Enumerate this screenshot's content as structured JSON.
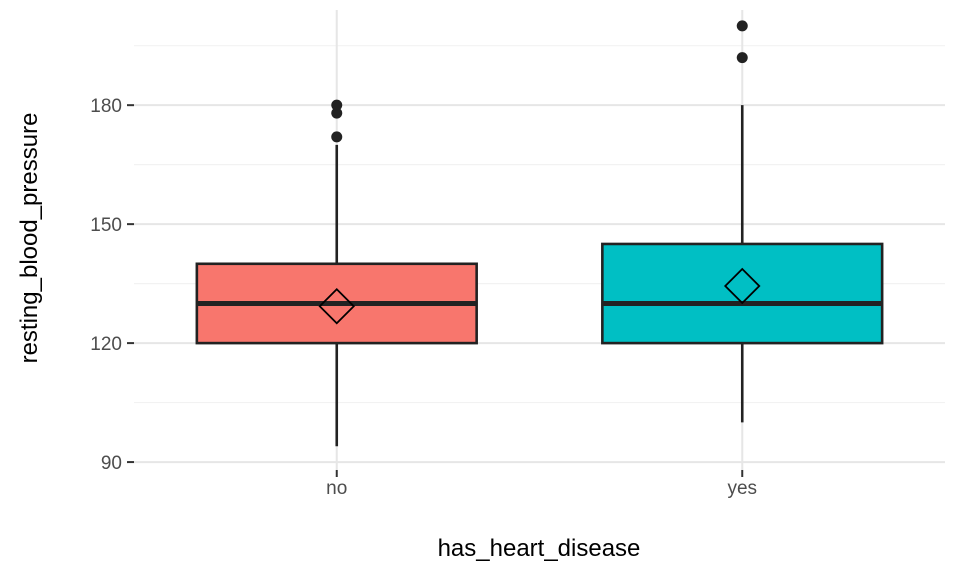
{
  "chart_data": {
    "type": "boxplot",
    "xlabel": "has_heart_disease",
    "ylabel": "resting_blood_pressure",
    "ylim": [
      88,
      204
    ],
    "yticks": [
      90,
      120,
      150,
      180
    ],
    "grid": true,
    "categories": [
      "no",
      "yes"
    ],
    "boxes": [
      {
        "category": "no",
        "color": "#F8766D",
        "q1": 120,
        "median": 130,
        "q3": 140,
        "whisker_low": 94,
        "whisker_high": 170,
        "mean": 129.3,
        "outliers": [
          172,
          178,
          180
        ]
      },
      {
        "category": "yes",
        "color": "#00BFC4",
        "q1": 120,
        "median": 130,
        "q3": 145,
        "whisker_low": 100,
        "whisker_high": 180,
        "mean": 134.4,
        "outliers": [
          192,
          200
        ]
      }
    ]
  }
}
